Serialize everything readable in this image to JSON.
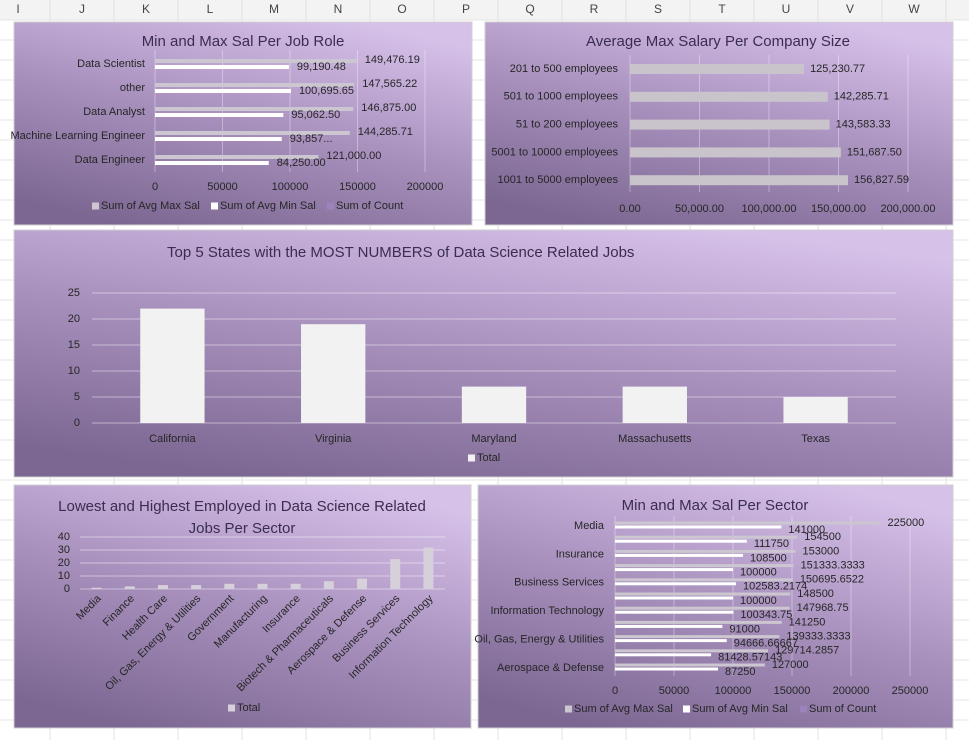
{
  "column_headers": [
    "I",
    "J",
    "K",
    "L",
    "M",
    "N",
    "O",
    "P",
    "Q",
    "R",
    "S",
    "T",
    "U",
    "V",
    "W"
  ],
  "chart_data": [
    {
      "type": "hbar",
      "title": "Min and Max Sal Per Job Role",
      "categories": [
        "Data Scientist",
        "other",
        "Data Analyst",
        "Machine Learning Engineer",
        "Data Engineer"
      ],
      "series": [
        {
          "name": "Sum of Avg Max Sal",
          "color": "#cbc6cf",
          "values": [
            149476.19,
            147565.22,
            146875.0,
            144285.71,
            121000.0
          ],
          "value_labels": [
            "149,476.19",
            "147,565.22",
            "146,875.00",
            "144,285.71",
            "121,000.00"
          ]
        },
        {
          "name": "Sum of Avg Min Sal",
          "color": "#ffffff",
          "values": [
            99190.48,
            100695.65,
            95062.5,
            93857.14,
            84250.0
          ],
          "value_labels": [
            "99,190.48",
            "100,695.65",
            "95,062.50",
            "93,857...",
            "84,250.00"
          ]
        },
        {
          "name": "Sum of Count",
          "color": "#9d82bb",
          "values": [
            null,
            null,
            null,
            null,
            null
          ]
        }
      ],
      "xlim": [
        0,
        200000
      ],
      "xticks": [
        0,
        50000,
        100000,
        150000,
        200000
      ],
      "grid": true,
      "legend": "bottom"
    },
    {
      "type": "hbar",
      "title": "Average Max Salary Per Company Size",
      "categories": [
        "201 to 500 employees",
        "501 to 1000 employees",
        "51 to 200 employees",
        "5001 to 10000 employees",
        "1001 to 5000 employees"
      ],
      "values": [
        125230.77,
        142285.71,
        143583.33,
        151687.5,
        156827.59
      ],
      "value_labels": [
        "125,230.77",
        "142,285.71",
        "143,583.33",
        "151,687.50",
        "156,827.59"
      ],
      "color": "#c9c4cc",
      "xlim": [
        0,
        200000
      ],
      "xticks": [
        {
          "value": 0,
          "label": "0.00"
        },
        {
          "value": 50000,
          "label": "50,000.00"
        },
        {
          "value": 100000,
          "label": "100,000.00"
        },
        {
          "value": 150000,
          "label": "150,000.00"
        },
        {
          "value": 200000,
          "label": "200,000.00"
        }
      ],
      "grid": true
    },
    {
      "type": "bar",
      "title": "Top 5 States with the MOST NUMBERS of Data Science Related Jobs",
      "categories": [
        "California",
        "Virginia",
        "Maryland",
        "Massachusetts",
        "Texas"
      ],
      "series": [
        {
          "name": "Total",
          "color": "#f2f2f2",
          "values": [
            22,
            19,
            7,
            7,
            5
          ]
        }
      ],
      "ylim": [
        0,
        25
      ],
      "yticks": [
        0,
        5,
        10,
        15,
        20,
        25
      ],
      "grid": true,
      "legend": "bottom"
    },
    {
      "type": "bar",
      "title": "Lowest and Highest Employed in Data Science Related Jobs Per Sector",
      "categories": [
        "Media",
        "Finance",
        "Health Care",
        "Oil, Gas, Energy & Utilities",
        "Government",
        "Manufacturing",
        "Insurance",
        "Biotech & Pharmaceuticals",
        "Aerospace & Defense",
        "Business Services",
        "Information Technology"
      ],
      "series": [
        {
          "name": "Total",
          "color": "#d6d0da",
          "values": [
            1,
            2,
            3,
            3,
            4,
            4,
            4,
            6,
            8,
            23,
            32
          ]
        }
      ],
      "ylim": [
        0,
        40
      ],
      "yticks": [
        0,
        10,
        20,
        30,
        40
      ],
      "grid": true,
      "legend": "bottom"
    },
    {
      "type": "hbar",
      "title": "Min and Max Sal Per Sector",
      "categories": [
        "Media",
        null,
        "Insurance",
        null,
        "Business Services",
        null,
        "Information Technology",
        null,
        "Oil, Gas, Energy & Utilities",
        null,
        "Aerospace & Defense"
      ],
      "series": [
        {
          "name": "Sum of Avg Max Sal",
          "color": "#cbc6cf",
          "values": [
            225000,
            154500,
            153000,
            151333.3333,
            150695.6522,
            148500,
            147968.75,
            141250,
            139333.3333,
            129714.2857,
            127000
          ]
        },
        {
          "name": "Sum of Avg Min Sal",
          "color": "#ffffff",
          "values": [
            141000,
            111750,
            108500,
            100000,
            102583.2174,
            100000,
            100343.75,
            91000,
            94666.66667,
            81428.57143,
            87250
          ]
        },
        {
          "name": "Sum of Count",
          "color": "#9d82bb",
          "values": [
            null,
            null,
            null,
            null,
            null,
            null,
            null,
            null,
            null,
            null,
            null
          ]
        }
      ],
      "xlim": [
        0,
        250000
      ],
      "xticks": [
        0,
        50000,
        100000,
        150000,
        200000,
        250000
      ],
      "grid": true,
      "legend": "bottom"
    }
  ]
}
